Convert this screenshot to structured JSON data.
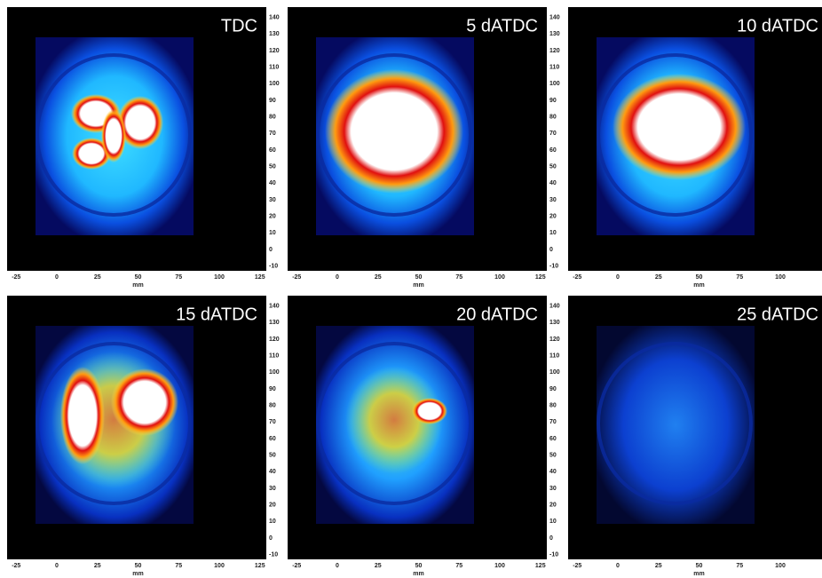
{
  "panels": [
    {
      "label": "TDC"
    },
    {
      "label": "5 dATDC"
    },
    {
      "label": "10 dATDC"
    },
    {
      "label": "15 dATDC"
    },
    {
      "label": "20 dATDC"
    },
    {
      "label": "25 dATDC"
    }
  ],
  "axes": {
    "xticks": [
      -25,
      0,
      25,
      50,
      75,
      100,
      125
    ],
    "xlabel": "mm",
    "yticks": [
      140,
      130,
      120,
      110,
      100,
      90,
      80,
      70,
      60,
      50,
      40,
      30,
      20,
      10,
      0,
      -10
    ]
  }
}
